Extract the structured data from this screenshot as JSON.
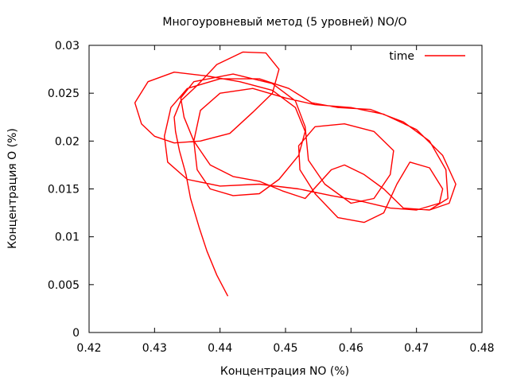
{
  "chart_data": {
    "type": "line",
    "title": "Многоуровневый метод (5 уровней) NO/O",
    "xlabel": "Концентрация NO (%)",
    "ylabel": "Концентрация O (%)",
    "xlim": [
      0.42,
      0.48
    ],
    "ylim": [
      0,
      0.03
    ],
    "x_ticks": [
      "0.42",
      "0.43",
      "0.44",
      "0.45",
      "0.46",
      "0.47",
      "0.48"
    ],
    "y_ticks": [
      "0",
      "0.005",
      "0.01",
      "0.015",
      "0.02",
      "0.025",
      "0.03"
    ],
    "grid": false,
    "legend_position": "top-right",
    "series": [
      {
        "name": "time",
        "color": "#ff0000",
        "points": [
          [
            0.4412,
            0.0038
          ],
          [
            0.4395,
            0.006
          ],
          [
            0.438,
            0.0085
          ],
          [
            0.4368,
            0.011
          ],
          [
            0.4355,
            0.014
          ],
          [
            0.4348,
            0.0165
          ],
          [
            0.4338,
            0.019
          ],
          [
            0.4332,
            0.021
          ],
          [
            0.433,
            0.0225
          ],
          [
            0.434,
            0.0242
          ],
          [
            0.4365,
            0.0258
          ],
          [
            0.4395,
            0.028
          ],
          [
            0.4435,
            0.0293
          ],
          [
            0.447,
            0.0292
          ],
          [
            0.449,
            0.0275
          ],
          [
            0.448,
            0.025
          ],
          [
            0.445,
            0.023
          ],
          [
            0.4415,
            0.0208
          ],
          [
            0.437,
            0.02
          ],
          [
            0.433,
            0.0198
          ],
          [
            0.43,
            0.0205
          ],
          [
            0.428,
            0.0218
          ],
          [
            0.427,
            0.024
          ],
          [
            0.429,
            0.0262
          ],
          [
            0.433,
            0.0272
          ],
          [
            0.438,
            0.0268
          ],
          [
            0.443,
            0.0262
          ],
          [
            0.448,
            0.0253
          ],
          [
            0.4515,
            0.0235
          ],
          [
            0.453,
            0.021
          ],
          [
            0.452,
            0.0185
          ],
          [
            0.449,
            0.016
          ],
          [
            0.446,
            0.0145
          ],
          [
            0.442,
            0.0143
          ],
          [
            0.4385,
            0.015
          ],
          [
            0.4365,
            0.017
          ],
          [
            0.436,
            0.02
          ],
          [
            0.437,
            0.0232
          ],
          [
            0.44,
            0.025
          ],
          [
            0.445,
            0.0255
          ],
          [
            0.45,
            0.0245
          ],
          [
            0.4545,
            0.0238
          ],
          [
            0.46,
            0.0235
          ],
          [
            0.465,
            0.0228
          ],
          [
            0.47,
            0.0212
          ],
          [
            0.474,
            0.0185
          ],
          [
            0.476,
            0.0155
          ],
          [
            0.475,
            0.0135
          ],
          [
            0.472,
            0.0128
          ],
          [
            0.468,
            0.013
          ],
          [
            0.465,
            0.015
          ],
          [
            0.462,
            0.0165
          ],
          [
            0.459,
            0.0175
          ],
          [
            0.457,
            0.017
          ],
          [
            0.455,
            0.0155
          ],
          [
            0.453,
            0.014
          ],
          [
            0.4495,
            0.0148
          ],
          [
            0.446,
            0.0158
          ],
          [
            0.442,
            0.0163
          ],
          [
            0.4385,
            0.0175
          ],
          [
            0.436,
            0.02
          ],
          [
            0.4345,
            0.0225
          ],
          [
            0.434,
            0.0245
          ],
          [
            0.436,
            0.0262
          ],
          [
            0.442,
            0.027
          ],
          [
            0.448,
            0.026
          ],
          [
            0.4515,
            0.0242
          ],
          [
            0.453,
            0.0215
          ],
          [
            0.4535,
            0.018
          ],
          [
            0.456,
            0.0155
          ],
          [
            0.46,
            0.0135
          ],
          [
            0.4635,
            0.014
          ],
          [
            0.466,
            0.0165
          ],
          [
            0.4665,
            0.019
          ],
          [
            0.4635,
            0.021
          ],
          [
            0.459,
            0.0218
          ],
          [
            0.4545,
            0.0215
          ],
          [
            0.452,
            0.0195
          ],
          [
            0.4522,
            0.017
          ],
          [
            0.4545,
            0.0145
          ],
          [
            0.458,
            0.012
          ],
          [
            0.462,
            0.0115
          ],
          [
            0.465,
            0.0125
          ],
          [
            0.467,
            0.0155
          ],
          [
            0.469,
            0.0178
          ],
          [
            0.472,
            0.0172
          ],
          [
            0.474,
            0.015
          ],
          [
            0.4735,
            0.0135
          ],
          [
            0.47,
            0.0128
          ],
          [
            0.466,
            0.013
          ],
          [
            0.461,
            0.0138
          ],
          [
            0.457,
            0.0143
          ],
          [
            0.452,
            0.015
          ],
          [
            0.446,
            0.0155
          ],
          [
            0.44,
            0.0153
          ],
          [
            0.435,
            0.016
          ],
          [
            0.432,
            0.0178
          ],
          [
            0.4315,
            0.0205
          ],
          [
            0.4325,
            0.0235
          ],
          [
            0.435,
            0.0255
          ],
          [
            0.44,
            0.0265
          ],
          [
            0.446,
            0.0265
          ],
          [
            0.4505,
            0.0255
          ],
          [
            0.454,
            0.024
          ],
          [
            0.458,
            0.0235
          ],
          [
            0.463,
            0.0233
          ],
          [
            0.468,
            0.022
          ],
          [
            0.472,
            0.02
          ],
          [
            0.4745,
            0.017
          ],
          [
            0.4748,
            0.014
          ],
          [
            0.472,
            0.0128
          ]
        ]
      }
    ]
  }
}
